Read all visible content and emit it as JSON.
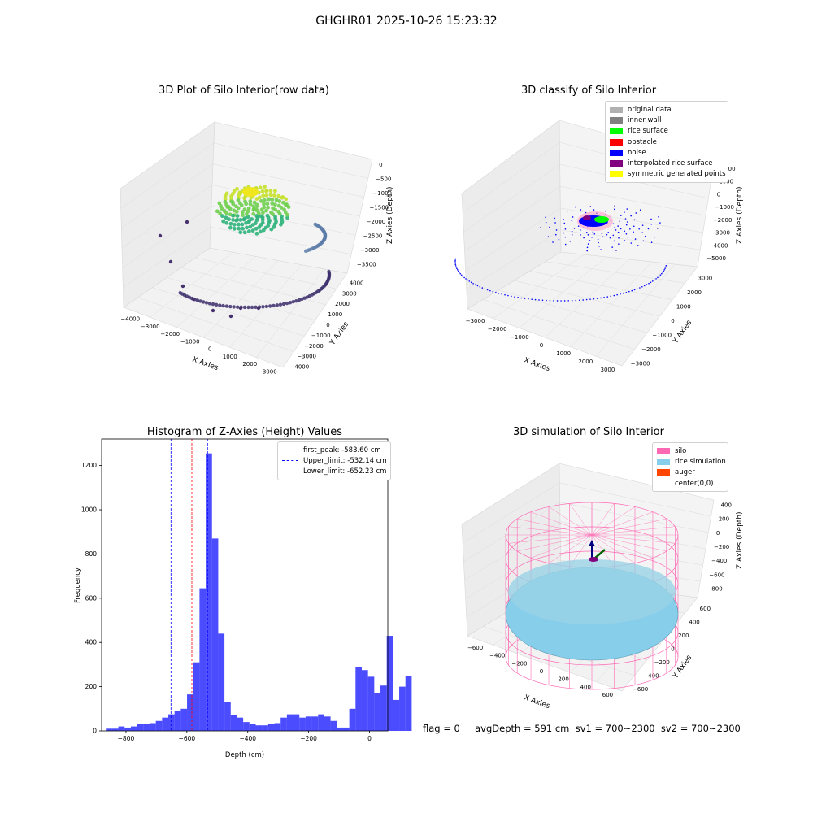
{
  "suptitle": "GHGHR01 2025-10-26 15:23:32",
  "footer": "flag = 0     avgDepth = 591 cm  sv1 = 700~2300  sv2 = 700~2300",
  "panels": {
    "raw": {
      "title": "3D Plot of Silo Interior(row data)",
      "xlabel": "X Axies",
      "ylabel": "Y Axies",
      "zlabel": "Z Axies (Depth)",
      "xticks": [
        "−4000",
        "−3000",
        "−2000",
        "−1000",
        "0",
        "1000",
        "2000",
        "3000"
      ],
      "yticks": [
        "−4000",
        "−3000",
        "−2000",
        "−1000",
        "0",
        "1000",
        "2000",
        "3000",
        "4000"
      ],
      "zticks": [
        "−3500",
        "−3000",
        "−2500",
        "−2000",
        "−1500",
        "−1000",
        "−500",
        "0"
      ]
    },
    "classify": {
      "title": "3D classify of Silo Interior",
      "xlabel": "X Axies",
      "ylabel": "Y Axies",
      "zlabel": "Z Axies (Depth)",
      "xticks": [
        "−3000",
        "−2000",
        "−1000",
        "0",
        "1000",
        "2000",
        "3000"
      ],
      "yticks": [
        "−3000",
        "−2000",
        "−1000",
        "0",
        "1000",
        "2000",
        "3000"
      ],
      "zticks": [
        "−5000",
        "−4000",
        "−3000",
        "−2000",
        "−1000",
        "0",
        "1000",
        "2000"
      ],
      "legend": [
        {
          "label": "original data",
          "color": "#b0b0b0"
        },
        {
          "label": "inner wall",
          "color": "#808080"
        },
        {
          "label": "rice surface",
          "color": "#00ff00"
        },
        {
          "label": "obstacle",
          "color": "#ff0000"
        },
        {
          "label": "noise",
          "color": "#0000ff"
        },
        {
          "label": "interpolated rice surface",
          "color": "#800080"
        },
        {
          "label": "symmetric generated points",
          "color": "#ffff00"
        }
      ]
    },
    "simulation": {
      "title": "3D simulation of Silo Interior",
      "xlabel": "X Axies",
      "ylabel": "Y Axies",
      "zlabel": "Z Axies (Depth)",
      "xticks": [
        "−600",
        "−400",
        "−200",
        "0",
        "200",
        "400",
        "600"
      ],
      "yticks": [
        "−600",
        "−400",
        "−200",
        "0",
        "200",
        "400",
        "600"
      ],
      "zticks": [
        "−800",
        "−600",
        "−400",
        "−200",
        "0",
        "200",
        "400"
      ],
      "legend": [
        {
          "label": "silo",
          "color": "#ff69b4"
        },
        {
          "label": "rice simulation",
          "color": "#87ceeb"
        },
        {
          "label": "auger",
          "color": "#ff4500"
        },
        {
          "label": "center(0,0)",
          "color": ""
        }
      ]
    }
  },
  "colors": {
    "bars": "#0000ff",
    "peak_line": "#ff0000",
    "limit_line": "#0000ff"
  },
  "chart_data": [
    {
      "type": "bar",
      "title": "Histogram of Z-Axies (Height) Values",
      "xlabel": "Depth (cm)",
      "ylabel": "Frequency",
      "xlim": [
        -880,
        60
      ],
      "ylim": [
        0,
        1320
      ],
      "xticks": [
        -800,
        -600,
        -400,
        -200,
        0
      ],
      "xtick_labels": [
        "−800",
        "−600",
        "−400",
        "−200",
        "0"
      ],
      "yticks": [
        0,
        200,
        400,
        600,
        800,
        1000,
        1200
      ],
      "bin_width": 20.5,
      "bin_start": -866,
      "values": [
        10,
        10,
        20,
        15,
        20,
        30,
        30,
        35,
        45,
        60,
        75,
        90,
        100,
        165,
        310,
        645,
        1255,
        870,
        440,
        130,
        70,
        60,
        40,
        30,
        25,
        25,
        30,
        35,
        60,
        75,
        75,
        60,
        65,
        65,
        75,
        65,
        45,
        15,
        15,
        100,
        290,
        275,
        245,
        170,
        205,
        430,
        140,
        200,
        250
      ],
      "lines": [
        {
          "name": "first_peak",
          "x": -583.6,
          "label": "first_peak: -583.60 cm"
        },
        {
          "name": "Upper_limit",
          "x": -532.14,
          "label": "Upper_limit: -532.14 cm"
        },
        {
          "name": "Lower_limit",
          "x": -652.23,
          "label": "Lower_limit: -652.23 cm"
        }
      ],
      "legend_position": "upper right"
    }
  ]
}
